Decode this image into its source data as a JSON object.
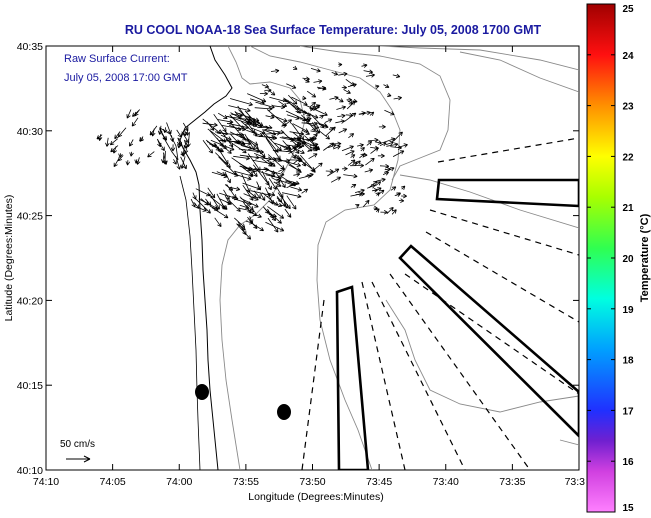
{
  "title": "RU COOL  NOAA-18  Sea Surface Temperature:  July 05, 2008 1700 GMT",
  "inset": {
    "line1": "Raw Surface Current:",
    "line2": "July 05, 2008 17:00 GMT"
  },
  "axes": {
    "xlabel": "Longitude (Degrees:Minutes)",
    "ylabel": "Latitude (Degrees:Minutes)",
    "xticks": [
      "74:10",
      "74:05",
      "74:00",
      "73:55",
      "73:50",
      "73:45",
      "73:40",
      "73:35",
      "73:3"
    ],
    "yticks": [
      "40:35",
      "40:30",
      "40:25",
      "40:20",
      "40:15",
      "40:10"
    ]
  },
  "scale_label": "50 cm/s",
  "colorbar": {
    "label": "Temperature (°C)",
    "ticks": [
      "25",
      "24",
      "23",
      "22",
      "21",
      "20",
      "19",
      "18",
      "17",
      "16",
      "15"
    ]
  },
  "colors": {
    "title": "#1a1aa0",
    "cmap": [
      "#ff80ff",
      "#a020c0",
      "#2030ff",
      "#00b4ff",
      "#00ffe0",
      "#40ff40",
      "#a8ff00",
      "#ffff00",
      "#ff9000",
      "#ff1010",
      "#a00000"
    ]
  }
}
